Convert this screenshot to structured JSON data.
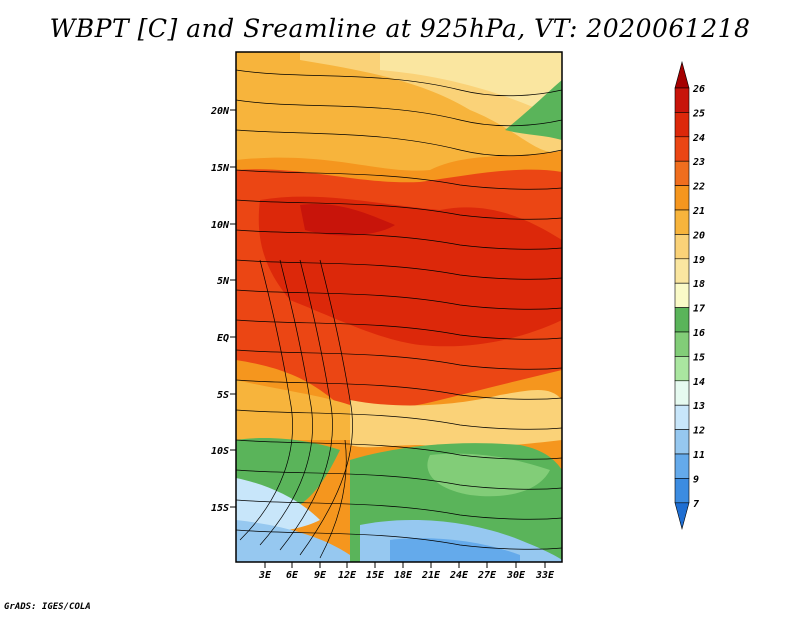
{
  "title": "WBPT [C] and Sreamline at 925hPa, VT: 2020061218",
  "credit": "GrADS: IGES/COLA",
  "map": {
    "lat_ticks": [
      "20N",
      "15N",
      "10N",
      "5N",
      "EQ",
      "5S",
      "10S",
      "15S"
    ],
    "lon_ticks": [
      "3E",
      "6E",
      "9E",
      "12E",
      "15E",
      "18E",
      "21E",
      "24E",
      "27E",
      "30E",
      "33E"
    ]
  },
  "colorbar": {
    "labels": [
      "26",
      "25",
      "24",
      "23",
      "22",
      "21",
      "20",
      "19",
      "18",
      "17",
      "16",
      "15",
      "14",
      "13",
      "12",
      "11",
      "9",
      "7"
    ],
    "colors": [
      "#a50000",
      "#c8140a",
      "#dc280a",
      "#eb4614",
      "#f06e1e",
      "#f5961e",
      "#f7b43c",
      "#fad278",
      "#fae6a0",
      "#fafac8",
      "#5ab45a",
      "#82cd78",
      "#aae6a0",
      "#e6faf0",
      "#c8e6fa",
      "#96c8f0",
      "#64aaeb",
      "#3c8ce1",
      "#1e6ed2"
    ]
  }
}
